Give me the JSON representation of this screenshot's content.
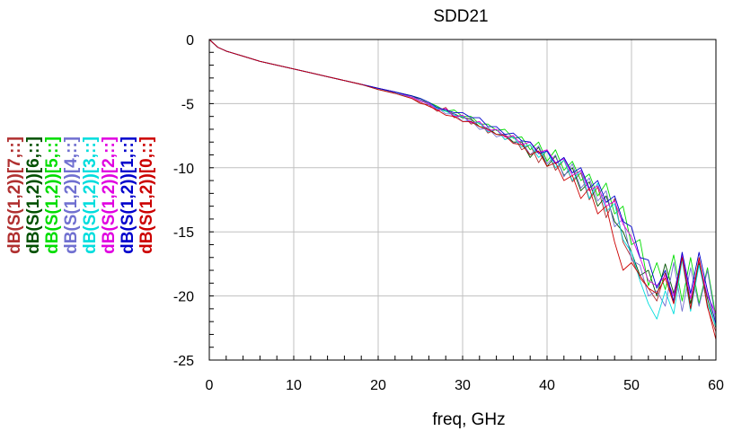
{
  "chart_data": {
    "type": "line",
    "title": "SDD21",
    "xlabel": "freq, GHz",
    "ylabel": "",
    "xlim": [
      0,
      60
    ],
    "ylim": [
      -25,
      0
    ],
    "x_ticks": [
      0,
      10,
      20,
      30,
      40,
      50,
      60
    ],
    "y_ticks": [
      0,
      -5,
      -10,
      -15,
      -20,
      -25
    ],
    "x_tick_labels": [
      "0",
      "10",
      "20",
      "30",
      "40",
      "50",
      "60"
    ],
    "y_tick_labels": [
      "0",
      "-5",
      "-10",
      "-15",
      "-20",
      "-25"
    ],
    "grid": true,
    "legend_position": "left, rotated vertical",
    "x": [
      0,
      1,
      2,
      4,
      6,
      8,
      10,
      12,
      14,
      16,
      18,
      20,
      22,
      24,
      25,
      26,
      27,
      28,
      29,
      30,
      31,
      32,
      33,
      34,
      35,
      36,
      37,
      38,
      39,
      40,
      41,
      42,
      43,
      44,
      45,
      46,
      47,
      48,
      49,
      50,
      51,
      52,
      53,
      54,
      55,
      56,
      57,
      58,
      59,
      60
    ],
    "series": [
      {
        "name": "dB(S(1,2))[7,::]",
        "color": "#b03030",
        "values": [
          0,
          -0.6,
          -0.9,
          -1.3,
          -1.7,
          -2.0,
          -2.3,
          -2.6,
          -2.9,
          -3.2,
          -3.5,
          -3.9,
          -4.2,
          -4.6,
          -5.0,
          -5.1,
          -5.6,
          -5.3,
          -6.1,
          -5.9,
          -6.6,
          -6.4,
          -7.3,
          -7.0,
          -7.8,
          -7.5,
          -8.6,
          -8.2,
          -9.6,
          -8.6,
          -10.2,
          -9.4,
          -11.1,
          -10.4,
          -12.5,
          -11.5,
          -13.9,
          -12.4,
          -15.8,
          -17.0,
          -18.6,
          -19.4,
          -20.4,
          -18.2,
          -20.6,
          -17.0,
          -21.0,
          -17.2,
          -20.9,
          -22.8
        ]
      },
      {
        "name": "dB(S(1,2))[6,::]",
        "color": "#005000",
        "values": [
          0,
          -0.6,
          -0.9,
          -1.3,
          -1.7,
          -2.0,
          -2.3,
          -2.6,
          -2.9,
          -3.2,
          -3.5,
          -3.8,
          -4.1,
          -4.4,
          -4.7,
          -5.0,
          -5.4,
          -5.6,
          -5.8,
          -6.1,
          -6.2,
          -6.8,
          -6.9,
          -7.4,
          -7.4,
          -8.0,
          -8.0,
          -9.2,
          -8.4,
          -9.9,
          -9.1,
          -10.6,
          -10.0,
          -11.8,
          -11.1,
          -13.0,
          -12.2,
          -14.2,
          -15.0,
          -16.6,
          -18.4,
          -18.0,
          -20.0,
          -17.5,
          -19.8,
          -17.0,
          -20.6,
          -17.4,
          -20.2,
          -22.5
        ]
      },
      {
        "name": "dB(S(1,2))[5,::]",
        "color": "#00dd00",
        "values": [
          0,
          -0.6,
          -0.9,
          -1.3,
          -1.7,
          -2.0,
          -2.3,
          -2.6,
          -2.9,
          -3.2,
          -3.5,
          -3.8,
          -4.1,
          -4.4,
          -4.6,
          -4.9,
          -5.2,
          -5.6,
          -5.5,
          -6.0,
          -6.0,
          -6.6,
          -6.6,
          -7.1,
          -7.0,
          -7.7,
          -7.6,
          -8.6,
          -8.0,
          -9.5,
          -8.6,
          -10.2,
          -9.5,
          -11.0,
          -10.5,
          -12.2,
          -11.2,
          -13.6,
          -13.0,
          -16.0,
          -15.6,
          -19.2,
          -17.4,
          -19.5,
          -16.8,
          -20.4,
          -17.0,
          -20.6,
          -17.8,
          -21.6
        ]
      },
      {
        "name": "dB(S(1,2))[4,::]",
        "color": "#7070d0",
        "values": [
          0,
          -0.6,
          -0.9,
          -1.3,
          -1.7,
          -2.0,
          -2.3,
          -2.6,
          -2.9,
          -3.2,
          -3.5,
          -3.8,
          -4.1,
          -4.5,
          -4.7,
          -5.1,
          -5.3,
          -5.8,
          -5.8,
          -6.4,
          -6.3,
          -7.0,
          -6.9,
          -7.6,
          -7.4,
          -8.1,
          -7.9,
          -9.0,
          -8.3,
          -9.7,
          -9.0,
          -10.7,
          -9.7,
          -11.6,
          -10.8,
          -12.6,
          -11.8,
          -14.6,
          -14.0,
          -17.2,
          -17.6,
          -20.0,
          -19.6,
          -20.8,
          -17.4,
          -21.2,
          -17.8,
          -20.8,
          -18.0,
          -22.0
        ]
      },
      {
        "name": "dB(S(1,2))[3,::]",
        "color": "#00dddd",
        "values": [
          0,
          -0.6,
          -0.9,
          -1.3,
          -1.7,
          -2.0,
          -2.3,
          -2.6,
          -2.9,
          -3.2,
          -3.5,
          -3.9,
          -4.2,
          -4.5,
          -4.8,
          -5.0,
          -5.4,
          -5.6,
          -5.9,
          -6.0,
          -6.5,
          -6.5,
          -7.2,
          -7.0,
          -7.8,
          -7.6,
          -8.4,
          -8.2,
          -9.2,
          -8.7,
          -10.0,
          -9.4,
          -11.0,
          -10.2,
          -12.4,
          -11.2,
          -13.4,
          -12.8,
          -15.6,
          -16.6,
          -18.8,
          -20.6,
          -21.8,
          -19.6,
          -21.4,
          -17.2,
          -21.2,
          -17.6,
          -20.6,
          -22.4
        ]
      },
      {
        "name": "dB(S(1,2))[2,::]",
        "color": "#e000e0",
        "values": [
          0,
          -0.6,
          -0.9,
          -1.3,
          -1.7,
          -2.0,
          -2.3,
          -2.6,
          -2.9,
          -3.2,
          -3.5,
          -3.8,
          -4.1,
          -4.5,
          -4.8,
          -5.0,
          -5.5,
          -5.4,
          -6.0,
          -5.9,
          -6.5,
          -6.4,
          -7.1,
          -7.0,
          -7.6,
          -7.5,
          -8.2,
          -8.0,
          -8.8,
          -8.6,
          -9.6,
          -9.3,
          -10.6,
          -10.2,
          -11.8,
          -11.4,
          -13.0,
          -12.6,
          -14.4,
          -15.4,
          -17.0,
          -18.8,
          -19.2,
          -18.4,
          -20.0,
          -16.8,
          -20.2,
          -17.2,
          -20.0,
          -21.4
        ]
      },
      {
        "name": "dB(S(1,2))[1,::]",
        "color": "#0000cc",
        "values": [
          0,
          -0.6,
          -0.9,
          -1.3,
          -1.7,
          -2.0,
          -2.3,
          -2.6,
          -2.9,
          -3.2,
          -3.5,
          -3.8,
          -4.1,
          -4.4,
          -4.6,
          -4.9,
          -5.3,
          -5.5,
          -5.7,
          -5.7,
          -6.1,
          -6.1,
          -6.8,
          -6.8,
          -7.4,
          -7.3,
          -7.9,
          -8.0,
          -8.9,
          -8.7,
          -9.7,
          -9.2,
          -10.4,
          -10.0,
          -11.6,
          -11.0,
          -12.7,
          -12.2,
          -14.2,
          -14.6,
          -17.0,
          -17.2,
          -19.4,
          -18.0,
          -20.4,
          -16.6,
          -19.8,
          -16.6,
          -19.6,
          -22.2
        ]
      },
      {
        "name": "dB(S(1,2))[0,::]",
        "color": "#cc0000",
        "values": [
          0,
          -0.6,
          -0.9,
          -1.3,
          -1.7,
          -2.0,
          -2.3,
          -2.6,
          -2.9,
          -3.2,
          -3.5,
          -3.9,
          -4.2,
          -4.6,
          -4.9,
          -5.2,
          -5.5,
          -5.9,
          -6.0,
          -6.4,
          -6.4,
          -6.8,
          -7.0,
          -7.4,
          -7.5,
          -8.1,
          -8.2,
          -9.0,
          -8.7,
          -9.9,
          -9.6,
          -11.0,
          -10.6,
          -12.4,
          -11.6,
          -13.6,
          -13.0,
          -15.8,
          -18.0,
          -17.4,
          -18.4,
          -19.4,
          -19.8,
          -18.6,
          -20.6,
          -17.0,
          -21.0,
          -17.0,
          -20.8,
          -23.4
        ]
      }
    ]
  }
}
